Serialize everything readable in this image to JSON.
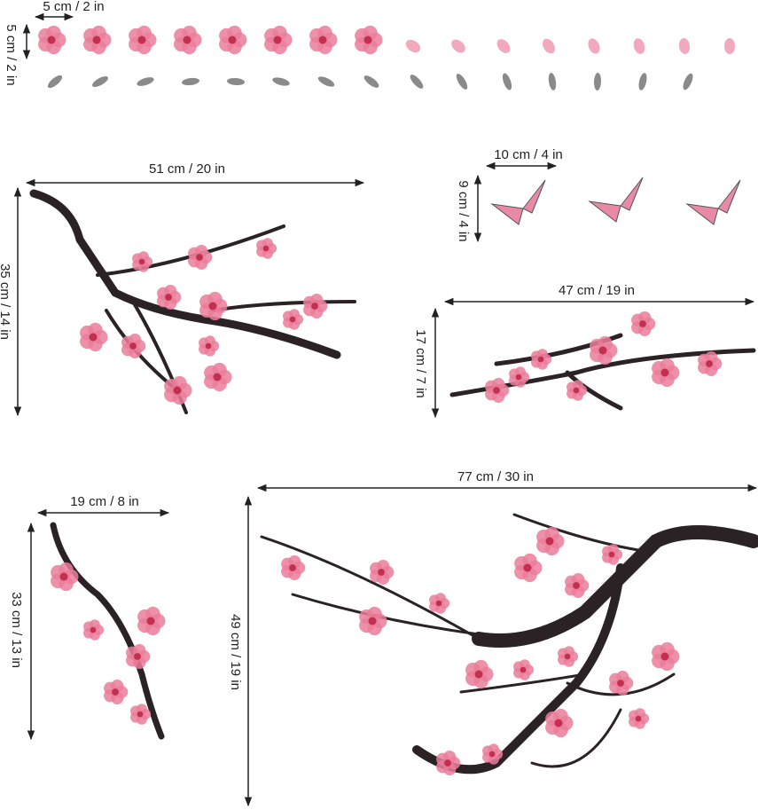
{
  "petals": {
    "width": "5 cm / 2 in",
    "height": "5 cm / 2 in"
  },
  "branch_1": {
    "width": "51 cm / 20 in",
    "height": "35 cm / 14 in"
  },
  "butterflies": {
    "width": "10 cm / 4 in",
    "height": "9 cm / 4 in"
  },
  "branch_2": {
    "width": "47 cm / 19 in",
    "height": "17 cm / 7 in"
  },
  "branch_3": {
    "width": "19 cm / 8 in",
    "height": "33 cm / 13 in"
  },
  "branch_4": {
    "width": "77 cm / 30 in",
    "height": "49 cm / 19 in"
  }
}
